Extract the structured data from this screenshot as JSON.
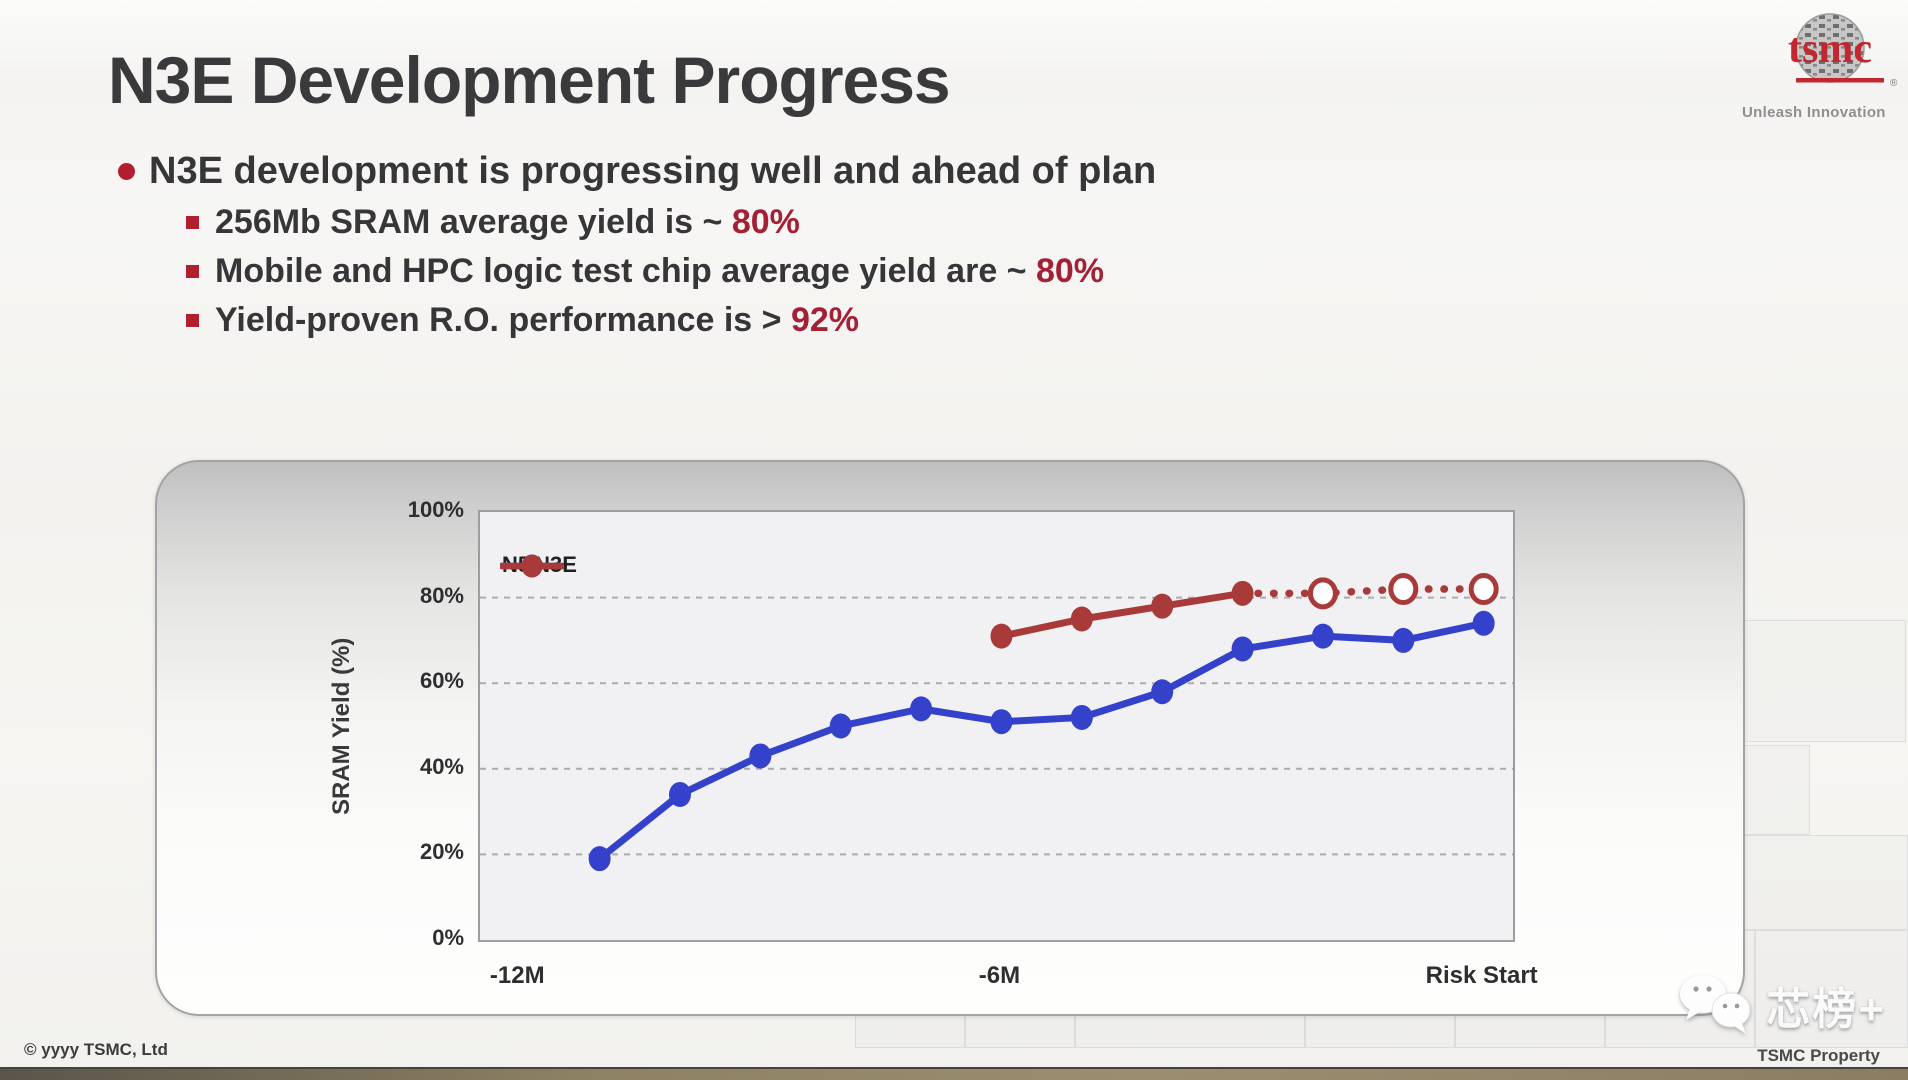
{
  "slide": {
    "title": "N3E Development Progress",
    "logo": {
      "brand": "tsmc",
      "tagline": "Unleash Innovation",
      "registered": "®",
      "brand_red": "#c2262e"
    },
    "bullets": {
      "main": "N3E development is progressing well and ahead of plan",
      "subs": [
        {
          "text": "256Mb SRAM average yield is ~ ",
          "highlight": "80%"
        },
        {
          "text": "Mobile and HPC logic test chip average yield are ~ ",
          "highlight": "80%"
        },
        {
          "text": "Yield-proven R.O. performance is > ",
          "highlight": "92%"
        }
      ],
      "accent_color": "#a32035"
    },
    "footer": {
      "left": "© yyyy TSMC, Ltd",
      "right": "TSMC Property"
    },
    "watermark": {
      "text": "芯榜+"
    }
  },
  "chart_data": {
    "type": "line",
    "title": "",
    "xlabel": "",
    "ylabel": "SRAM Yield (%)",
    "ylim": [
      0,
      100
    ],
    "grid": "horizontal dashed at 20/40/60/80",
    "legend_position": "top-left inside plot",
    "x_unit": "months relative to risk start",
    "yticks": [
      {
        "v": 100,
        "label": "100%"
      },
      {
        "v": 80,
        "label": "80%"
      },
      {
        "v": 60,
        "label": "60%"
      },
      {
        "v": 40,
        "label": "40%"
      },
      {
        "v": 20,
        "label": "20%"
      },
      {
        "v": 0,
        "label": "0%"
      }
    ],
    "xticks": [
      {
        "m": -12,
        "label": "-12M"
      },
      {
        "m": -6,
        "label": "-6M"
      },
      {
        "m": 0,
        "label": "Risk Start"
      }
    ],
    "series": [
      {
        "name": "N5",
        "color": "#3441cb",
        "marker": "filled-circle",
        "line": "solid",
        "x": [
          -11,
          -10,
          -9,
          -8,
          -7,
          -6,
          -5,
          -4,
          -3,
          -2,
          -1,
          0
        ],
        "values": [
          19,
          34,
          43,
          50,
          54,
          51,
          52,
          58,
          68,
          71,
          70,
          74
        ]
      },
      {
        "name": "N3E",
        "color": "#a93a3a",
        "marker": "filled-circle",
        "line": "solid",
        "x": [
          -6,
          -5,
          -4,
          -3
        ],
        "values": [
          71,
          75,
          78,
          81
        ]
      },
      {
        "name": "N3E projected",
        "color": "#a93a3a",
        "marker": "open-circle",
        "line": "dotted",
        "x": [
          -2,
          -1,
          0
        ],
        "values": [
          81,
          82,
          82
        ]
      }
    ],
    "legend": [
      "N5",
      "N3E"
    ]
  }
}
